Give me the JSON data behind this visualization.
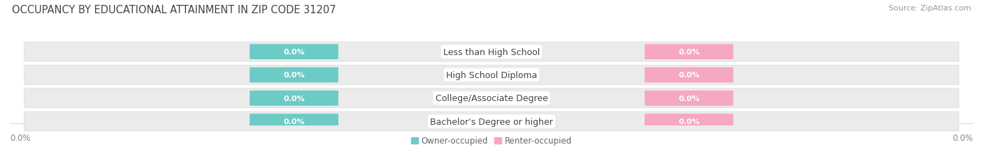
{
  "title": "OCCUPANCY BY EDUCATIONAL ATTAINMENT IN ZIP CODE 31207",
  "source": "Source: ZipAtlas.com",
  "categories": [
    "Less than High School",
    "High School Diploma",
    "College/Associate Degree",
    "Bachelor's Degree or higher"
  ],
  "owner_values": [
    0.0,
    0.0,
    0.0,
    0.0
  ],
  "renter_values": [
    0.0,
    0.0,
    0.0,
    0.0
  ],
  "owner_color": "#6CCBC4",
  "renter_color": "#F5A8C0",
  "bar_bg_color": "#EBEBEB",
  "title_fontsize": 10.5,
  "source_fontsize": 8,
  "label_fontsize": 9,
  "tick_fontsize": 8.5,
  "background_color": "#FFFFFF",
  "legend_owner": "Owner-occupied",
  "legend_renter": "Renter-occupied"
}
